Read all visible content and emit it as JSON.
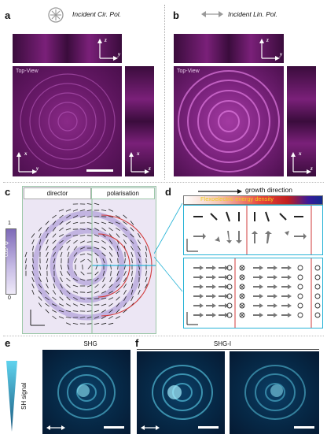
{
  "panels": {
    "a": {
      "label": "a",
      "title": "Incident Cir. Pol.",
      "top_view": "Top-View"
    },
    "b": {
      "label": "b",
      "title": "Incident Lin. Pol.",
      "top_view": "Top-View"
    },
    "c": {
      "label": "c",
      "director": "director",
      "polarisation": "polarisation",
      "colorbar": {
        "label": "cos² φ",
        "max": "1",
        "min": "0"
      }
    },
    "d": {
      "label": "d",
      "growth": "growth direction",
      "energy": "Flexoelectric energy density"
    },
    "e": {
      "label": "e",
      "title": "SHG",
      "sh_signal": "SH signal"
    },
    "f": {
      "label": "f",
      "title": "SHG-I"
    }
  },
  "axes": {
    "x": "x",
    "y": "y",
    "z": "z"
  },
  "colors": {
    "magenta": "#7a2079",
    "frame_blue": "#2aa3d8",
    "frame_green": "#9cc7a8",
    "red_line": "#d23b3b",
    "cyan_line": "#27b3d6",
    "sh_cyan": "#5fd3ee"
  }
}
